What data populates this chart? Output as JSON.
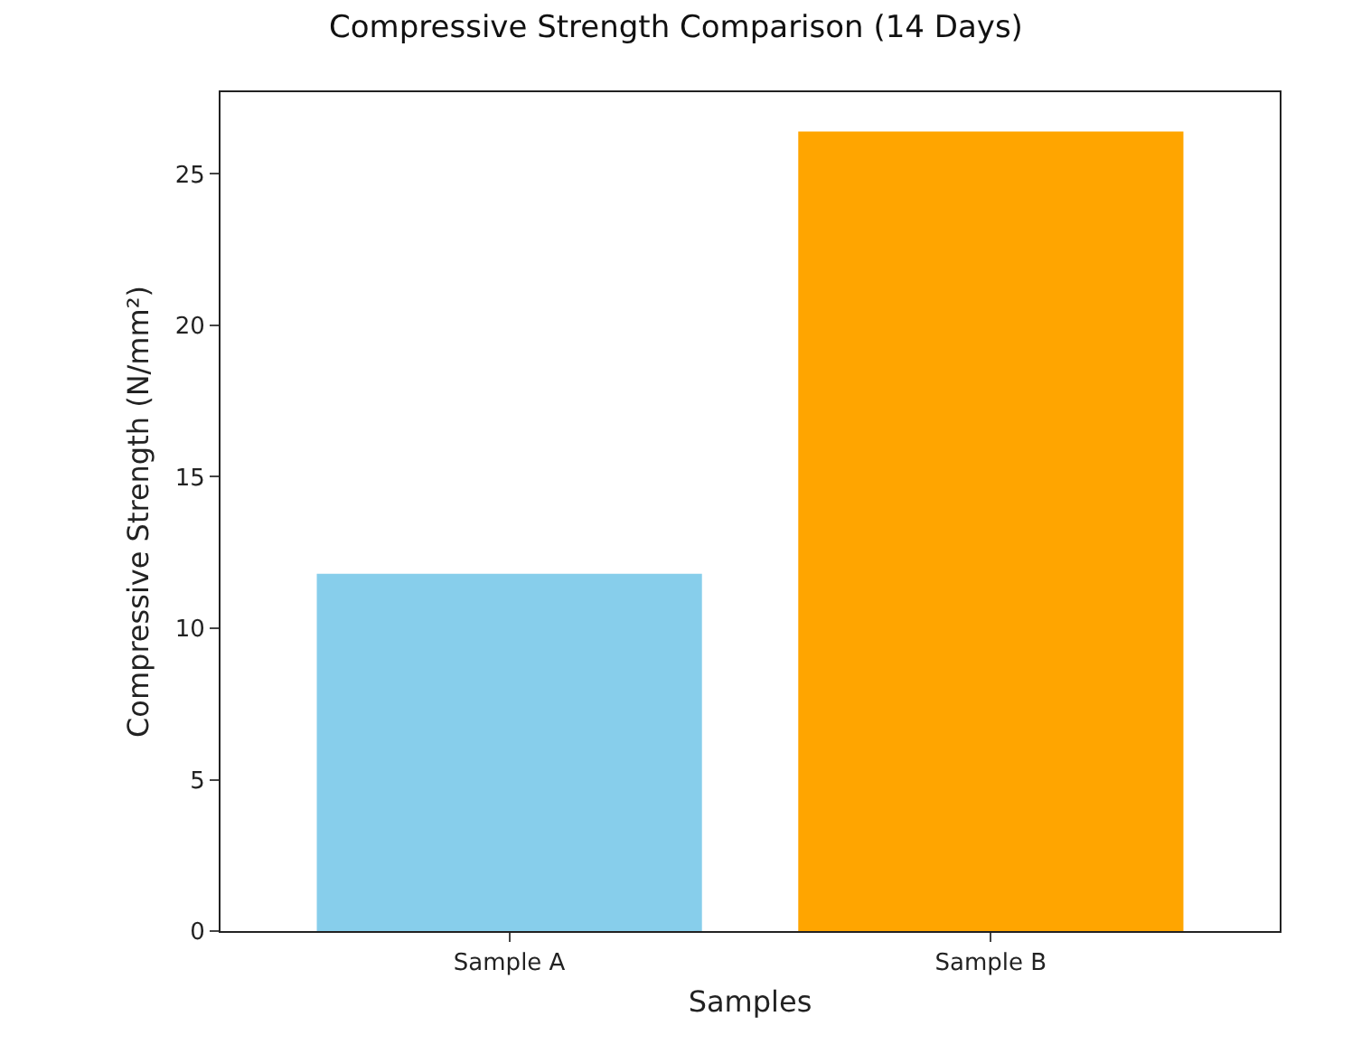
{
  "chart_data": {
    "type": "bar",
    "title": "Compressive Strength Comparison (14 Days)",
    "xlabel": "Samples",
    "ylabel": "Compressive Strength (N/mm²)",
    "categories": [
      "Sample A",
      "Sample B"
    ],
    "values": [
      11.8,
      26.4
    ],
    "colors": [
      "#87ceeb",
      "#ffa500"
    ],
    "ylim": [
      0,
      27.7
    ],
    "yticks": [
      0,
      5,
      10,
      15,
      20,
      25
    ]
  }
}
